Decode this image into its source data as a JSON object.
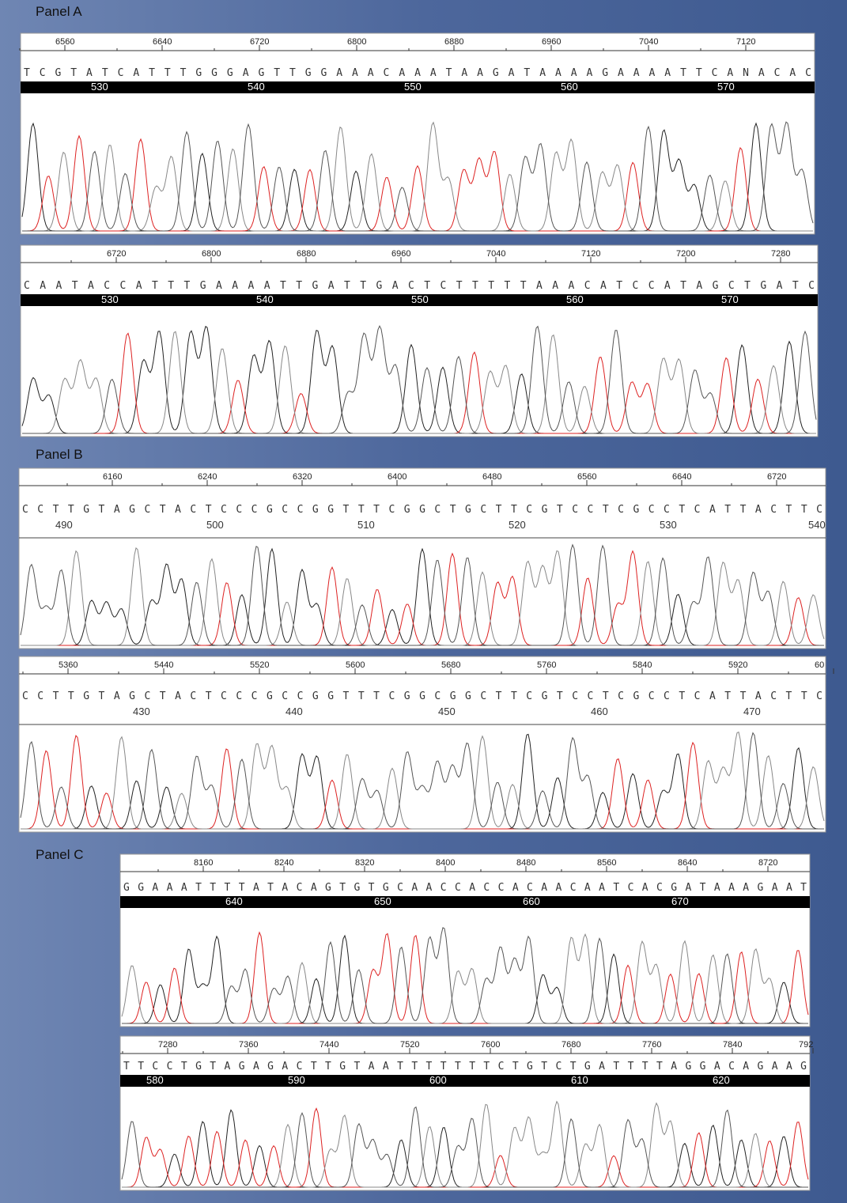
{
  "panels": [
    {
      "label": "Panel A",
      "strips": [
        {
          "ruler": [
            6560,
            6640,
            6720,
            6800,
            6880,
            6960,
            7040,
            7120
          ],
          "sequence": "TCGTATCATTTGGGAGTTGGAAACAAATAAGATAAAAGAAAATTCANACAC",
          "positions": [
            530,
            540,
            550,
            560,
            570
          ]
        },
        {
          "ruler": [
            6720,
            6800,
            6880,
            6960,
            7040,
            7120,
            7200,
            7280
          ],
          "sequence": "CAATACCATTTGAAAATTGATTGACTCTTTTTAAACATCCATAGCTGATC",
          "positions": [
            530,
            540,
            550,
            560,
            570
          ]
        }
      ]
    },
    {
      "label": "Panel B",
      "strips": [
        {
          "ruler": [
            6160,
            6240,
            6320,
            6400,
            6480,
            6560,
            6640,
            6720
          ],
          "sequence": "CCTTGTAGCTACTCCCGCCGGTTTCGGCTGCTTCGTCCTCGCCTCATTACTTC",
          "positions": [
            490,
            500,
            510,
            520,
            530,
            540
          ]
        },
        {
          "ruler": [
            5360,
            5440,
            5520,
            5600,
            5680,
            5760,
            5840,
            5920,
            60
          ],
          "sequence": "CCTTGTAGCTACTCCCGCCGGTTTCGGCGGCTTCGTCCTCGCCTCATTACTTC",
          "positions": [
            430,
            440,
            450,
            460,
            470
          ]
        }
      ]
    },
    {
      "label": "Panel C",
      "strips": [
        {
          "ruler": [
            8160,
            8240,
            8320,
            8400,
            8480,
            8560,
            8640,
            8720
          ],
          "sequence": "GGAAATTTTATACAGTGTGCAACCACCACAACAATCACGATAAAGAAT",
          "positions": [
            640,
            650,
            660,
            670
          ]
        },
        {
          "ruler": [
            7280,
            7360,
            7440,
            7520,
            7600,
            7680,
            7760,
            7840,
            792
          ],
          "sequence": "TTCCTGTAGAGACTTGTAATTTTTTTCTGTCTGATTTTAGGACAGAAG",
          "positions": [
            580,
            590,
            600,
            610,
            620
          ]
        }
      ]
    }
  ]
}
